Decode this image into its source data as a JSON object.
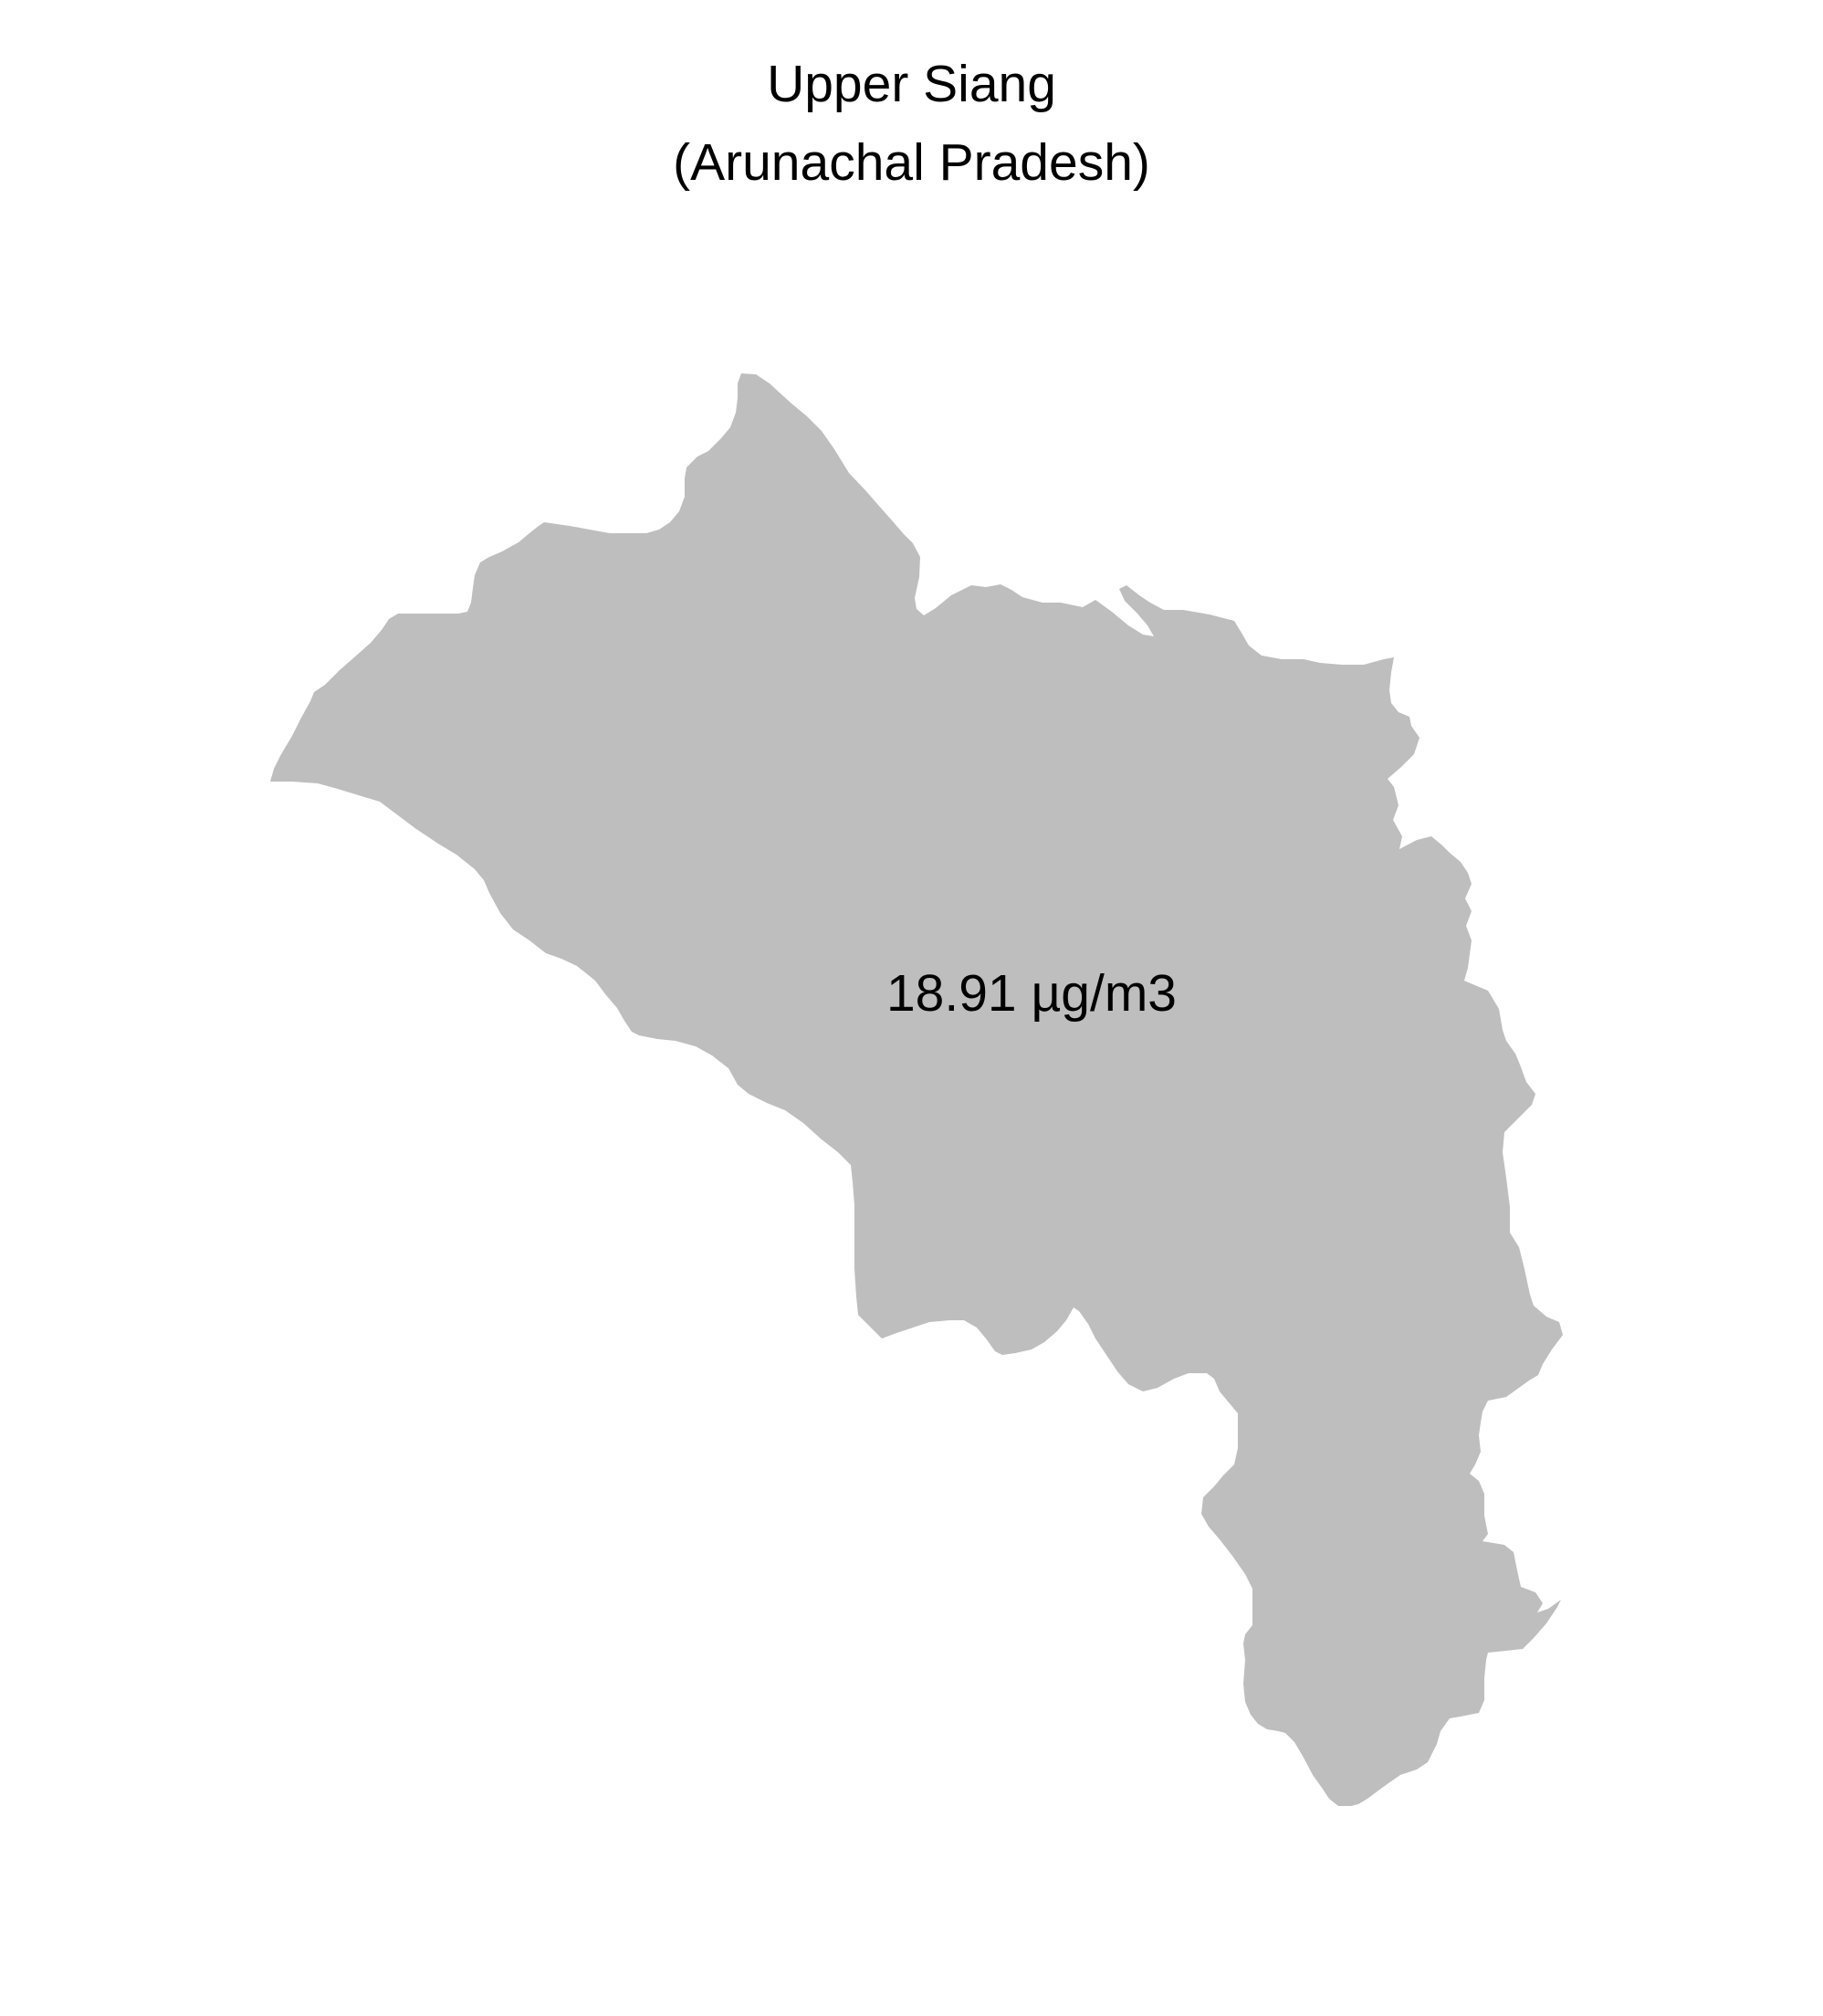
{
  "map": {
    "title_line1": "Upper Siang",
    "title_line2": "(Arunachal Pradesh)",
    "region": {
      "name": "Upper Siang",
      "value_label": "18.91 µg/m3",
      "value": 18.91,
      "unit": "µg/m3",
      "fill_color": "#bebebe"
    },
    "background_color": "#ffffff"
  }
}
